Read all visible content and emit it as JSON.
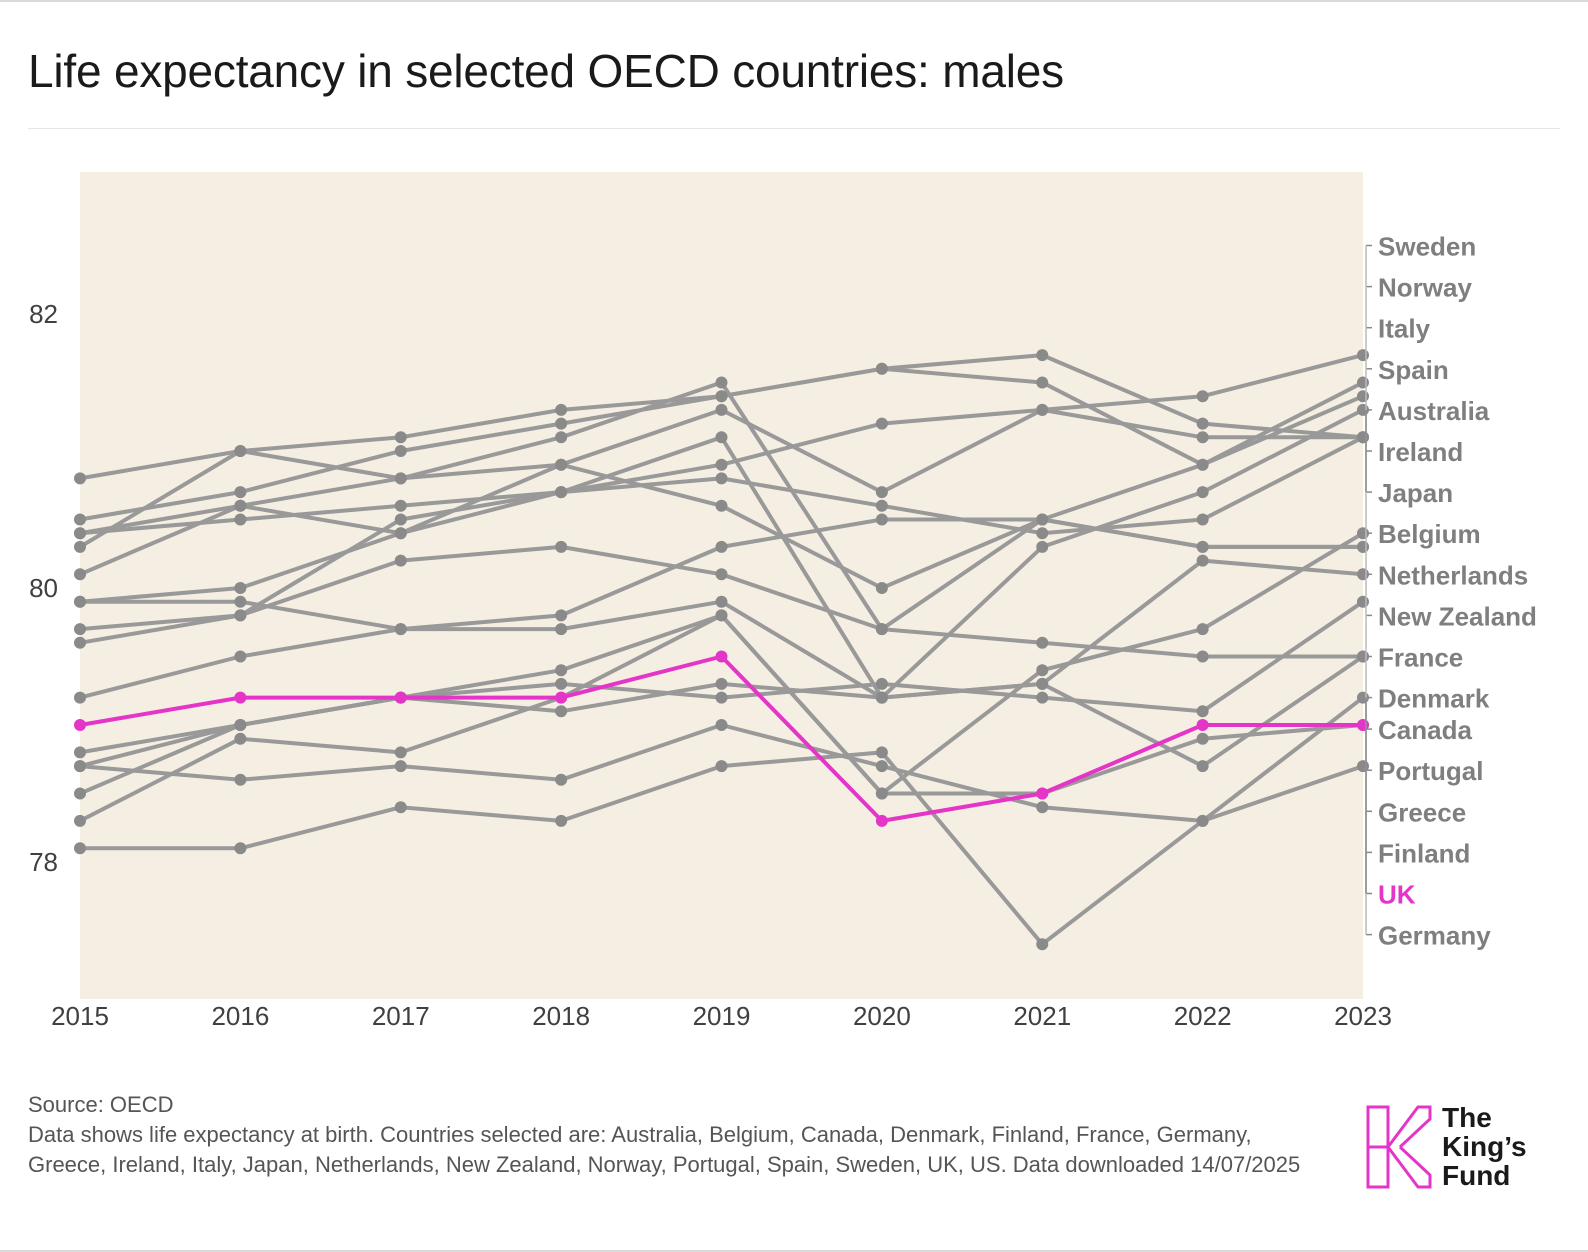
{
  "title": "Life expectancy in selected OECD countries: males",
  "colors": {
    "background": "#ffffff",
    "plot_background": "#f5efe3",
    "series_default": "#999999",
    "point_default": "#8a8a8a",
    "highlight": "#e535c8",
    "label_default": "#7f7f7f"
  },
  "footer": {
    "source": "Source: OECD",
    "notes": "Data shows life expectancy at birth. Countries selected are: Australia, Belgium, Canada, Denmark, Finland, France, Germany, Greece, Ireland, Italy, Japan, Netherlands, New Zealand, Norway, Portugal, Spain, Sweden, UK, US. Data downloaded 14/07/2025"
  },
  "logo": {
    "line1": "The",
    "line2": "King’s",
    "line3": "Fund"
  },
  "chart_data": {
    "type": "line",
    "title": "Life expectancy in selected OECD countries: males",
    "x": [
      2015,
      2016,
      2017,
      2018,
      2019,
      2020,
      2021,
      2022,
      2023
    ],
    "ylim": [
      77,
      83
    ],
    "yticks": [
      78,
      80,
      82
    ],
    "grid": false,
    "legend": "right (direct labels)",
    "highlight_series": "UK",
    "series": [
      {
        "name": "Sweden",
        "values": [
          80.4,
          80.6,
          80.8,
          80.9,
          81.3,
          80.7,
          81.3,
          81.4,
          81.7
        ]
      },
      {
        "name": "Norway",
        "values": [
          80.5,
          80.7,
          81.0,
          81.2,
          81.4,
          81.6,
          81.5,
          80.9,
          81.5
        ]
      },
      {
        "name": "Italy",
        "values": [
          80.3,
          81.0,
          80.8,
          81.1,
          81.5,
          79.7,
          80.5,
          80.9,
          81.4
        ]
      },
      {
        "name": "Spain",
        "values": [
          79.9,
          80.0,
          80.4,
          80.7,
          81.1,
          79.2,
          80.3,
          80.7,
          81.3
        ]
      },
      {
        "name": "Australia",
        "values": [
          80.8,
          81.0,
          81.1,
          81.3,
          81.4,
          81.6,
          81.7,
          81.2,
          81.1
        ]
      },
      {
        "name": "Ireland",
        "values": [
          79.6,
          79.8,
          80.5,
          80.7,
          80.9,
          81.2,
          81.3,
          81.1,
          81.1
        ]
      },
      {
        "name": "Japan",
        "values": [
          80.4,
          80.5,
          80.6,
          80.7,
          80.8,
          80.6,
          80.4,
          80.5,
          81.1
        ]
      },
      {
        "name": "Belgium",
        "values": [
          78.7,
          79.0,
          79.2,
          79.4,
          79.8,
          78.5,
          79.4,
          79.7,
          80.4
        ]
      },
      {
        "name": "Netherlands",
        "values": [
          80.1,
          80.6,
          80.4,
          80.9,
          80.6,
          80.0,
          80.5,
          80.3,
          80.3
        ]
      },
      {
        "name": "New Zealand",
        "values": [
          79.9,
          79.9,
          79.7,
          79.8,
          80.3,
          80.5,
          80.5,
          80.3,
          80.3
        ]
      },
      {
        "name": "France",
        "values": [
          79.2,
          79.5,
          79.7,
          79.7,
          79.9,
          79.2,
          79.3,
          80.2,
          80.1
        ]
      },
      {
        "name": "Denmark",
        "values": [
          78.8,
          79.0,
          79.2,
          79.3,
          79.2,
          79.3,
          79.2,
          79.1,
          79.9
        ]
      },
      {
        "name": "Canada",
        "values": [
          79.7,
          79.8,
          80.2,
          80.3,
          80.1,
          79.7,
          79.6,
          79.5,
          79.5
        ]
      },
      {
        "name": "Portugal",
        "values": [
          78.5,
          79.0,
          79.2,
          79.1,
          79.3,
          79.2,
          79.3,
          78.7,
          79.5
        ]
      },
      {
        "name": "Greece",
        "values": [
          78.7,
          78.6,
          78.7,
          78.6,
          79.0,
          78.7,
          78.4,
          78.3,
          79.2
        ]
      },
      {
        "name": "Finland",
        "values": [
          78.3,
          78.9,
          78.8,
          79.2,
          79.8,
          78.5,
          78.5,
          78.9,
          79.0
        ]
      },
      {
        "name": "UK",
        "values": [
          79.0,
          79.2,
          79.2,
          79.2,
          79.5,
          78.3,
          78.5,
          79.0,
          79.0
        ]
      },
      {
        "name": "Germany",
        "values": [
          78.1,
          78.1,
          78.4,
          78.3,
          78.7,
          78.8,
          77.4,
          78.3,
          78.7
        ]
      }
    ],
    "labels": [
      {
        "name": "Sweden",
        "label_y": 82.5,
        "anchor": 82.5
      },
      {
        "name": "Norway",
        "label_y": 82.2,
        "anchor": 82.2
      },
      {
        "name": "Italy",
        "label_y": 81.9,
        "anchor": 81.9
      },
      {
        "name": "Spain",
        "label_y": 81.6,
        "anchor": 81.6
      },
      {
        "name": "Australia",
        "label_y": 81.3,
        "anchor": 81.3
      },
      {
        "name": "Ireland",
        "label_y": 81.0,
        "anchor": 81.0
      },
      {
        "name": "Japan",
        "label_y": 80.7,
        "anchor": 80.7
      },
      {
        "name": "Belgium",
        "label_y": 80.4,
        "anchor": 80.4
      },
      {
        "name": "Netherlands",
        "label_y": 80.1,
        "anchor": 80.1
      },
      {
        "name": "New Zealand",
        "label_y": 79.8,
        "anchor": 79.8
      },
      {
        "name": "France",
        "label_y": 79.5,
        "anchor": 79.5
      },
      {
        "name": "Denmark",
        "label_y": 79.2,
        "anchor": 79.2
      },
      {
        "name": "Canada",
        "label_y": 78.97,
        "anchor": 78.97
      },
      {
        "name": "Portugal",
        "label_y": 78.67,
        "anchor": 78.67
      },
      {
        "name": "Greece",
        "label_y": 78.37,
        "anchor": 78.37
      },
      {
        "name": "Finland",
        "label_y": 78.07,
        "anchor": 78.07
      },
      {
        "name": "UK",
        "label_y": 77.77,
        "anchor": 77.77
      },
      {
        "name": "Germany",
        "label_y": 77.47,
        "anchor": 77.47
      }
    ]
  }
}
